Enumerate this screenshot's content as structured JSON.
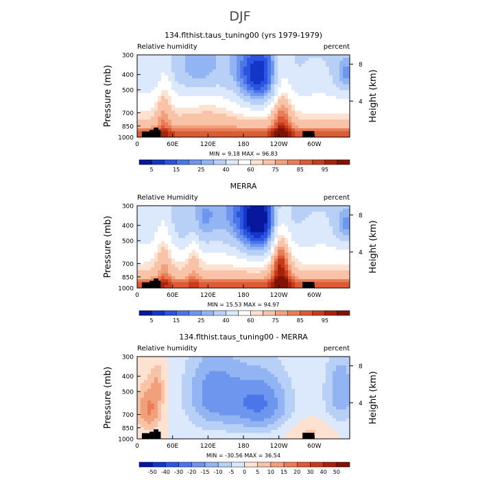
{
  "figure": {
    "title": "DJF"
  },
  "chart_data": [
    {
      "type": "heatmap",
      "title": "134.flthist.taus_tuning00 (yrs 1979-1979)",
      "left_label": "Relative humidity",
      "right_label": "percent",
      "ylabel": "Pressure (mb)",
      "ylabel_right": "Height (km)",
      "y_ticks": [
        "300",
        "400",
        "500",
        "700",
        "850",
        "1000"
      ],
      "y_ticks_right": [
        "8",
        "4"
      ],
      "x_ticks": [
        "0",
        "60E",
        "120E",
        "180",
        "120W",
        "60W"
      ],
      "stats": "MIN =    9.18   MAX =   96.83",
      "colorbar": {
        "labels": [
          "5",
          "15",
          "25",
          "40",
          "60",
          "75",
          "85",
          "95"
        ],
        "colors": [
          "#08189e",
          "#1336c8",
          "#2b55e0",
          "#4a76e9",
          "#6e96ee",
          "#93b4f2",
          "#b9d0f6",
          "#dce8fb",
          "#ffffff",
          "#fde2d2",
          "#f8c3a6",
          "#f2a07c",
          "#ea7d57",
          "#dc5a35",
          "#c73b1c",
          "#a7220c",
          "#7f1205"
        ]
      },
      "field": "rh_model"
    },
    {
      "type": "heatmap",
      "title": "MERRA",
      "left_label": "Relative Humidity",
      "right_label": "percent",
      "ylabel": "Pressure (mb)",
      "ylabel_right": "Height (km)",
      "y_ticks": [
        "300",
        "400",
        "500",
        "700",
        "850",
        "1000"
      ],
      "y_ticks_right": [
        "8",
        "4"
      ],
      "x_ticks": [
        "0",
        "60E",
        "120E",
        "180",
        "120W",
        "60W"
      ],
      "stats": "MIN =   15.53   MAX =   94.97",
      "colorbar": {
        "labels": [
          "5",
          "15",
          "25",
          "40",
          "60",
          "75",
          "85",
          "95"
        ],
        "colors": [
          "#08189e",
          "#1336c8",
          "#2b55e0",
          "#4a76e9",
          "#6e96ee",
          "#93b4f2",
          "#b9d0f6",
          "#dce8fb",
          "#ffffff",
          "#fde2d2",
          "#f8c3a6",
          "#f2a07c",
          "#ea7d57",
          "#dc5a35",
          "#c73b1c",
          "#a7220c",
          "#7f1205"
        ]
      },
      "field": "rh_merra"
    },
    {
      "type": "heatmap",
      "title": "134.flthist.taus_tuning00 - MERRA",
      "left_label": "Relative humidity",
      "right_label": "percent",
      "ylabel": "Pressure (mb)",
      "ylabel_right": "Height (km)",
      "y_ticks": [
        "300",
        "400",
        "500",
        "700",
        "850",
        "1000"
      ],
      "y_ticks_right": [
        "8",
        "4"
      ],
      "x_ticks": [
        "0",
        "60E",
        "120E",
        "180",
        "120W",
        "60W"
      ],
      "stats": "MIN =  -30.56   MAX =   36.54",
      "colorbar": {
        "labels": [
          "-50",
          "-40",
          "-30",
          "-20",
          "-15",
          "-10",
          "-5",
          "0",
          "5",
          "10",
          "15",
          "20",
          "30",
          "40",
          "50"
        ],
        "colors": [
          "#08189e",
          "#1336c8",
          "#2b55e0",
          "#4a76e9",
          "#6e96ee",
          "#93b4f2",
          "#b9d0f6",
          "#dce8fb",
          "#fde2d2",
          "#f8c3a6",
          "#f2a07c",
          "#ea7d57",
          "#dc5a35",
          "#c73b1c",
          "#a7220c",
          "#7f1205"
        ]
      },
      "field": "rh_diff"
    }
  ]
}
